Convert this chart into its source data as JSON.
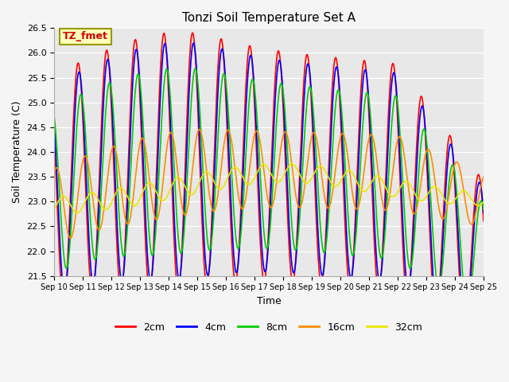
{
  "title": "Tonzi Soil Temperature Set A",
  "xlabel": "Time",
  "ylabel": "Soil Temperature (C)",
  "annotation": "TZ_fmet",
  "ylim": [
    21.5,
    26.5
  ],
  "xlim": [
    0,
    15
  ],
  "xtick_labels": [
    "Sep 10",
    "Sep 11",
    "Sep 12",
    "Sep 13",
    "Sep 14",
    "Sep 15",
    "Sep 16",
    "Sep 17",
    "Sep 18",
    "Sep 19",
    "Sep 20",
    "Sep 21",
    "Sep 22",
    "Sep 23",
    "Sep 24",
    "Sep 25"
  ],
  "series_labels": [
    "2cm",
    "4cm",
    "8cm",
    "16cm",
    "32cm"
  ],
  "series_colors": [
    "#ff0000",
    "#0000ff",
    "#00cc00",
    "#ff8c00",
    "#e8e800"
  ],
  "line_width": 1.2,
  "bg_color": "#e8e8e8",
  "title_fontsize": 11,
  "annotation_color": "#cc0000",
  "annotation_bg": "#ffffbb",
  "annotation_edge": "#999900"
}
